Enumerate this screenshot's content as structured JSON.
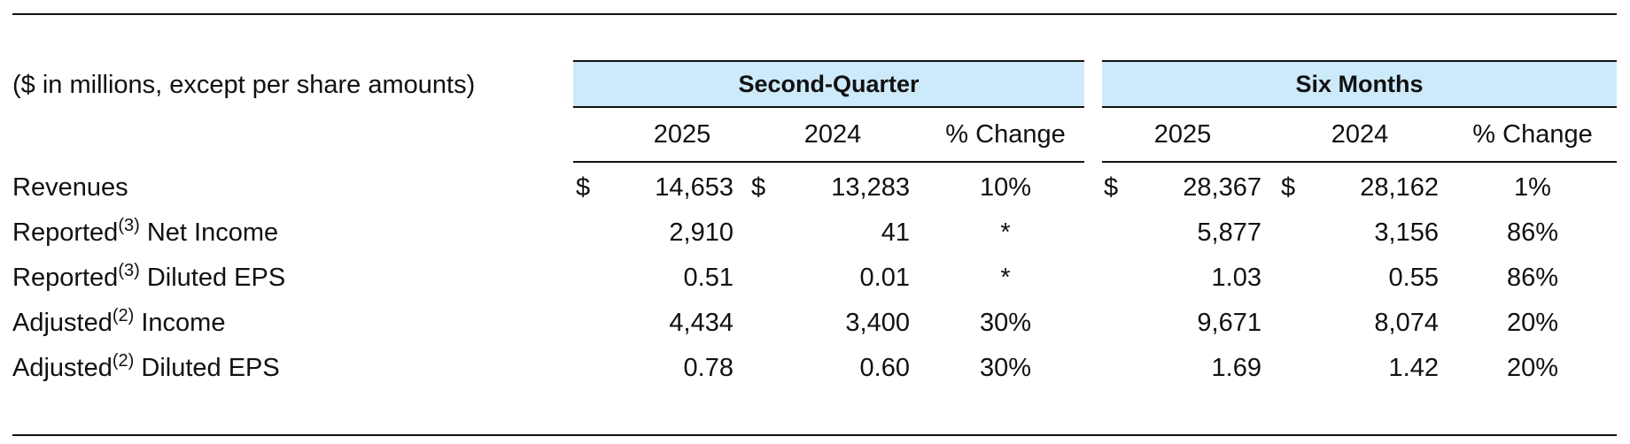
{
  "table": {
    "units_note": "($ in millions, except per share amounts)",
    "groups": [
      "Second-Quarter",
      "Six Months"
    ],
    "columns": [
      "2025",
      "2024",
      "% Change",
      "2025",
      "2024",
      "% Change"
    ],
    "currency_symbol": "$",
    "rows": [
      {
        "label": "Revenues",
        "sup": "",
        "label_rest": "",
        "values": [
          "14,653",
          "13,283",
          "10%",
          "28,367",
          "28,162",
          "1%"
        ]
      },
      {
        "label": "Reported",
        "sup": "(3)",
        "label_rest": " Net Income",
        "values": [
          "2,910",
          "41",
          "*",
          "5,877",
          "3,156",
          "86%"
        ]
      },
      {
        "label": "Reported",
        "sup": "(3)",
        "label_rest": " Diluted EPS",
        "values": [
          "0.51",
          "0.01",
          "*",
          "1.03",
          "0.55",
          "86%"
        ]
      },
      {
        "label": "Adjusted",
        "sup": "(2)",
        "label_rest": " Income",
        "values": [
          "4,434",
          "3,400",
          "30%",
          "9,671",
          "8,074",
          "20%"
        ]
      },
      {
        "label": "Adjusted",
        "sup": "(2)",
        "label_rest": " Diluted EPS",
        "values": [
          "0.78",
          "0.60",
          "30%",
          "1.69",
          "1.42",
          "20%"
        ]
      }
    ]
  }
}
